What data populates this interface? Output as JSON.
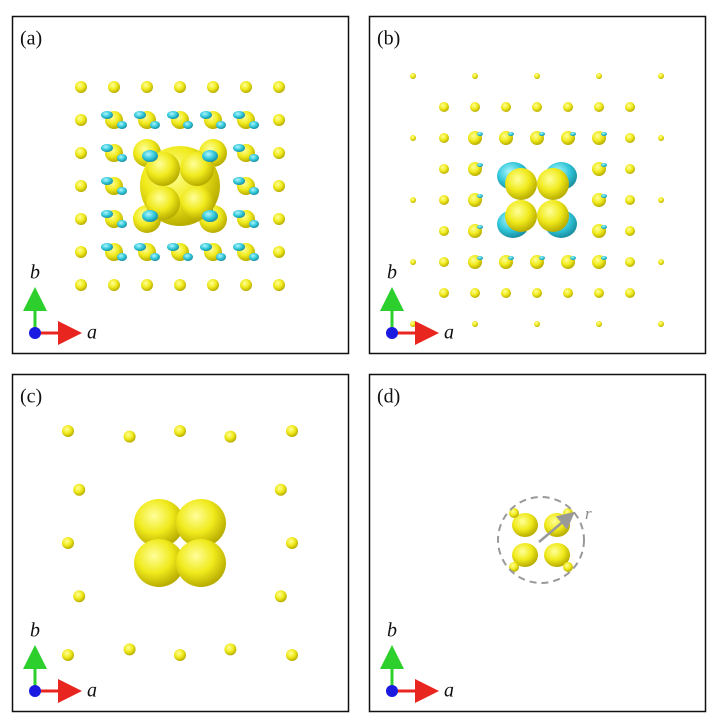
{
  "panels": [
    {
      "label": "(a)",
      "axes": {
        "x": "a",
        "y": "b"
      }
    },
    {
      "label": "(b)",
      "axes": {
        "x": "a",
        "y": "b"
      }
    },
    {
      "label": "(c)",
      "axes": {
        "x": "a",
        "y": "b"
      }
    },
    {
      "label": "(d)",
      "axes": {
        "x": "a",
        "y": "b"
      },
      "annotation": "r"
    }
  ]
}
